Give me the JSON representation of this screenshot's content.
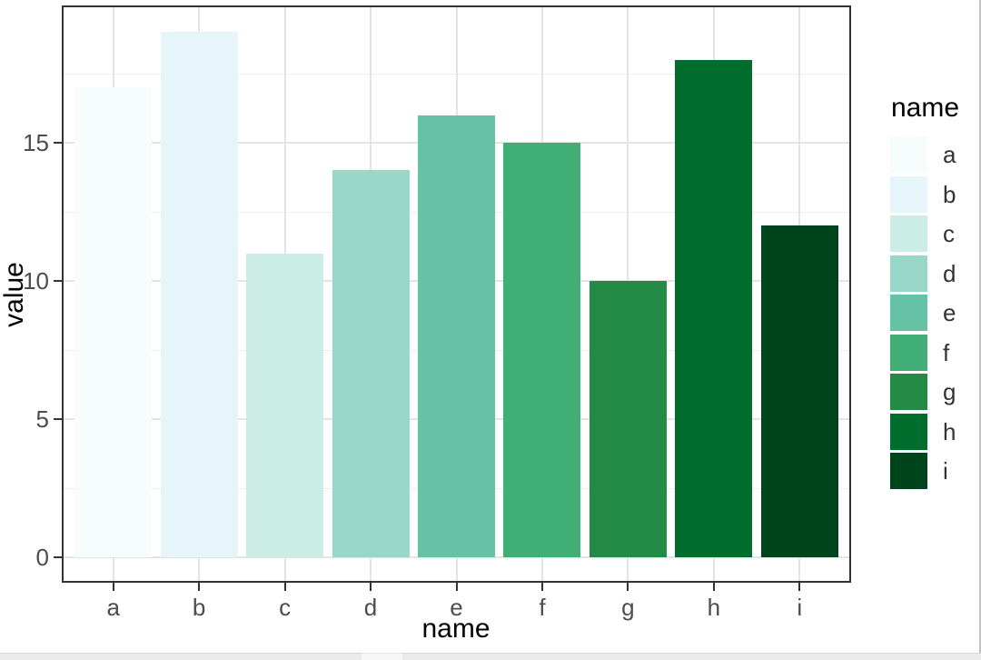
{
  "chart_data": {
    "type": "bar",
    "title": "",
    "xlabel": "name",
    "ylabel": "value",
    "categories": [
      "a",
      "b",
      "c",
      "d",
      "e",
      "f",
      "g",
      "h",
      "i"
    ],
    "values": [
      17,
      19,
      11,
      14,
      16,
      15,
      10,
      18,
      12
    ],
    "bar_colors": [
      "#f7fcfd",
      "#e5f5f9",
      "#ccece6",
      "#99d8c9",
      "#66c2a4",
      "#41ae76",
      "#238b45",
      "#006d2c",
      "#00441b"
    ],
    "ylim": [
      0,
      20
    ],
    "yticks": [
      0,
      5,
      10,
      15
    ],
    "yticks_minor": [
      2.5,
      7.5,
      12.5,
      17.5
    ],
    "grid": {
      "horizontal": "major+minor",
      "vertical": "major-at-categories"
    },
    "legend": {
      "title": "name",
      "position": "right",
      "entries": [
        {
          "label": "a",
          "color": "#f7fcfd"
        },
        {
          "label": "b",
          "color": "#e5f5f9"
        },
        {
          "label": "c",
          "color": "#ccece6"
        },
        {
          "label": "d",
          "color": "#99d8c9"
        },
        {
          "label": "e",
          "color": "#66c2a4"
        },
        {
          "label": "f",
          "color": "#41ae76"
        },
        {
          "label": "g",
          "color": "#238b45"
        },
        {
          "label": "h",
          "color": "#006d2c"
        },
        {
          "label": "i",
          "color": "#00441b"
        }
      ]
    }
  },
  "theme": {
    "background": "#ffffff",
    "panel_background": "#ffffff",
    "panel_border": "#333333",
    "grid_major": "#e4e4e4",
    "grid_minor": "#eeeeee",
    "tick_mark": "#333333",
    "tick_label": "#4d4d4d",
    "axis_title": "#000000"
  },
  "window": {
    "right_edge_color": "#c2c2c2",
    "bottom_panel_color": "#eaeaea"
  }
}
